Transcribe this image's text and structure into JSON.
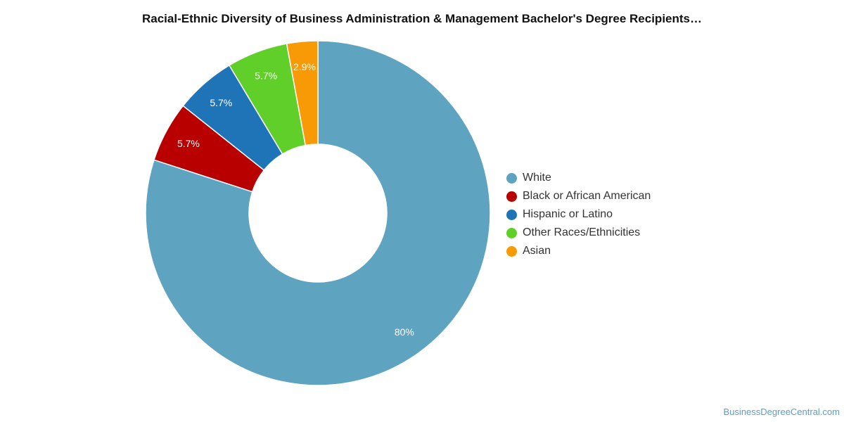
{
  "chart_data": {
    "type": "pie",
    "title": "Racial-Ethnic Diversity of Business Administration & Management Bachelor's Degree Recipients…",
    "legend_position": "right",
    "donut": true,
    "slices": [
      {
        "label": "White",
        "value": 80,
        "display": "80%",
        "color": "#5ea3c0"
      },
      {
        "label": "Black or African American",
        "value": 5.7,
        "display": "5.7%",
        "color": "#b80000"
      },
      {
        "label": "Hispanic or Latino",
        "value": 5.7,
        "display": "5.7%",
        "color": "#1f73b7"
      },
      {
        "label": "Other Races/Ethnicities",
        "value": 5.7,
        "display": "5.7%",
        "color": "#61cf2a"
      },
      {
        "label": "Asian",
        "value": 2.9,
        "display": "2.9%",
        "color": "#f89a06"
      }
    ]
  },
  "watermark": "BusinessDegreeCentral.com"
}
